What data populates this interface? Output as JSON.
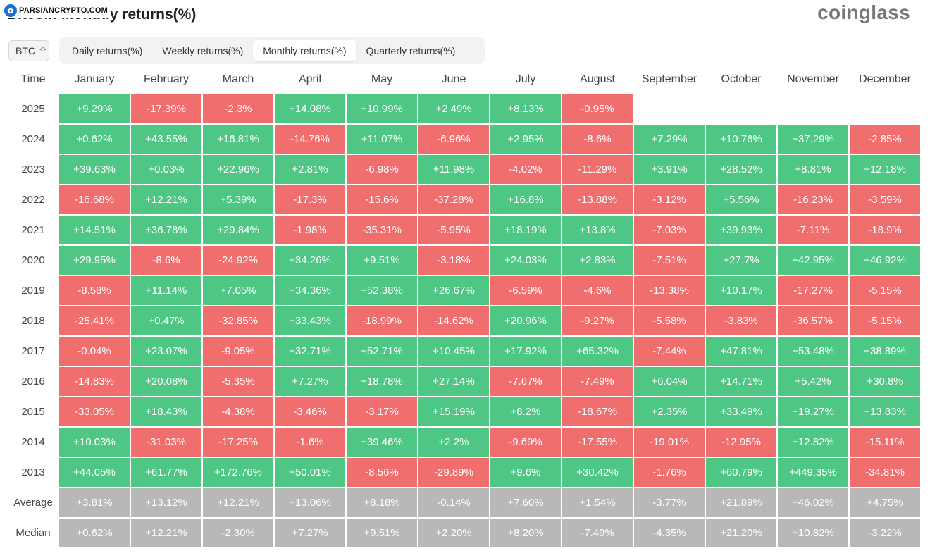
{
  "header": {
    "title": "Bitcoin Monthly returns(%)",
    "brand": "coinglass",
    "watermark": "PARSIANCRYPTO.COM"
  },
  "asset_select": {
    "value": "BTC"
  },
  "tabs": [
    {
      "label": "Daily returns(%)",
      "active": false
    },
    {
      "label": "Weekly returns(%)",
      "active": false
    },
    {
      "label": "Monthly returns(%)",
      "active": true
    },
    {
      "label": "Quarterly returns(%)",
      "active": false
    }
  ],
  "colors": {
    "positive": "#4ec785",
    "negative": "#f16e6f",
    "summary": "#b8b8b8"
  },
  "table": {
    "corner_label": "Time",
    "months": [
      "January",
      "February",
      "March",
      "April",
      "May",
      "June",
      "July",
      "August",
      "September",
      "October",
      "November",
      "December"
    ],
    "rows": [
      {
        "year": "2025",
        "values": [
          "+9.29%",
          "-17.39%",
          "-2.3%",
          "+14.08%",
          "+10.99%",
          "+2.49%",
          "+8.13%",
          "-0.95%",
          "",
          "",
          "",
          ""
        ]
      },
      {
        "year": "2024",
        "values": [
          "+0.62%",
          "+43.55%",
          "+16.81%",
          "-14.76%",
          "+11.07%",
          "-6.96%",
          "+2.95%",
          "-8.6%",
          "+7.29%",
          "+10.76%",
          "+37.29%",
          "-2.85%"
        ]
      },
      {
        "year": "2023",
        "values": [
          "+39.63%",
          "+0.03%",
          "+22.96%",
          "+2.81%",
          "-6.98%",
          "+11.98%",
          "-4.02%",
          "-11.29%",
          "+3.91%",
          "+28.52%",
          "+8.81%",
          "+12.18%"
        ]
      },
      {
        "year": "2022",
        "values": [
          "-16.68%",
          "+12.21%",
          "+5.39%",
          "-17.3%",
          "-15.6%",
          "-37.28%",
          "+16.8%",
          "-13.88%",
          "-3.12%",
          "+5.56%",
          "-16.23%",
          "-3.59%"
        ]
      },
      {
        "year": "2021",
        "values": [
          "+14.51%",
          "+36.78%",
          "+29.84%",
          "-1.98%",
          "-35.31%",
          "-5.95%",
          "+18.19%",
          "+13.8%",
          "-7.03%",
          "+39.93%",
          "-7.11%",
          "-18.9%"
        ]
      },
      {
        "year": "2020",
        "values": [
          "+29.95%",
          "-8.6%",
          "-24.92%",
          "+34.26%",
          "+9.51%",
          "-3.18%",
          "+24.03%",
          "+2.83%",
          "-7.51%",
          "+27.7%",
          "+42.95%",
          "+46.92%"
        ]
      },
      {
        "year": "2019",
        "values": [
          "-8.58%",
          "+11.14%",
          "+7.05%",
          "+34.36%",
          "+52.38%",
          "+26.67%",
          "-6.59%",
          "-4.6%",
          "-13.38%",
          "+10.17%",
          "-17.27%",
          "-5.15%"
        ]
      },
      {
        "year": "2018",
        "values": [
          "-25.41%",
          "+0.47%",
          "-32.85%",
          "+33.43%",
          "-18.99%",
          "-14.62%",
          "+20.96%",
          "-9.27%",
          "-5.58%",
          "-3.83%",
          "-36.57%",
          "-5.15%"
        ]
      },
      {
        "year": "2017",
        "values": [
          "-0.04%",
          "+23.07%",
          "-9.05%",
          "+32.71%",
          "+52.71%",
          "+10.45%",
          "+17.92%",
          "+65.32%",
          "-7.44%",
          "+47.81%",
          "+53.48%",
          "+38.89%"
        ]
      },
      {
        "year": "2016",
        "values": [
          "-14.83%",
          "+20.08%",
          "-5.35%",
          "+7.27%",
          "+18.78%",
          "+27.14%",
          "-7.67%",
          "-7.49%",
          "+6.04%",
          "+14.71%",
          "+5.42%",
          "+30.8%"
        ]
      },
      {
        "year": "2015",
        "values": [
          "-33.05%",
          "+18.43%",
          "-4.38%",
          "-3.46%",
          "-3.17%",
          "+15.19%",
          "+8.2%",
          "-18.67%",
          "+2.35%",
          "+33.49%",
          "+19.27%",
          "+13.83%"
        ]
      },
      {
        "year": "2014",
        "values": [
          "+10.03%",
          "-31.03%",
          "-17.25%",
          "-1.6%",
          "+39.46%",
          "+2.2%",
          "-9.69%",
          "-17.55%",
          "-19.01%",
          "-12.95%",
          "+12.82%",
          "-15.11%"
        ]
      },
      {
        "year": "2013",
        "values": [
          "+44.05%",
          "+61.77%",
          "+172.76%",
          "+50.01%",
          "-8.56%",
          "-29.89%",
          "+9.6%",
          "+30.42%",
          "-1.76%",
          "+60.79%",
          "+449.35%",
          "-34.81%"
        ]
      }
    ],
    "summary": [
      {
        "label": "Average",
        "values": [
          "+3.81%",
          "+13.12%",
          "+12.21%",
          "+13.06%",
          "+8.18%",
          "-0.14%",
          "+7.60%",
          "+1.54%",
          "-3.77%",
          "+21.89%",
          "+46.02%",
          "+4.75%"
        ]
      },
      {
        "label": "Median",
        "values": [
          "+0.62%",
          "+12.21%",
          "-2.30%",
          "+7.27%",
          "+9.51%",
          "+2.20%",
          "+8.20%",
          "-7.49%",
          "-4.35%",
          "+21.20%",
          "+10.82%",
          "-3.22%"
        ]
      }
    ]
  }
}
